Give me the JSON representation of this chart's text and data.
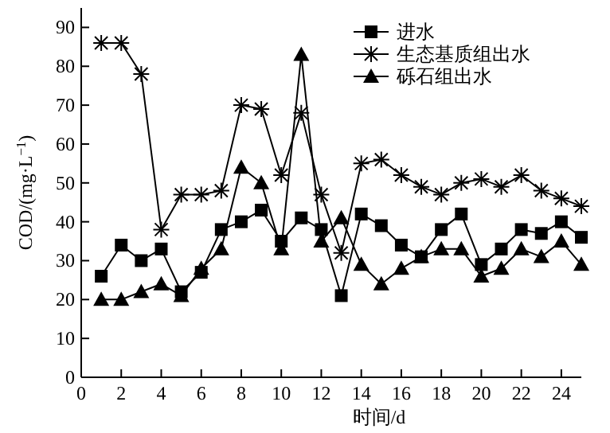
{
  "chart_data": {
    "type": "line",
    "xlabel": "时间/d",
    "ylabel": "COD/(mg·L$^{−1}$)",
    "x": [
      1,
      2,
      3,
      4,
      5,
      6,
      7,
      8,
      9,
      10,
      11,
      12,
      13,
      14,
      15,
      16,
      17,
      18,
      19,
      20,
      21,
      22,
      23,
      24,
      25
    ],
    "series": [
      {
        "name": "进水",
        "color": "#000000",
        "marker": "square",
        "values": [
          26,
          34,
          30,
          33,
          22,
          27,
          38,
          40,
          43,
          35,
          41,
          38,
          21,
          42,
          39,
          34,
          31,
          38,
          42,
          29,
          33,
          38,
          37,
          40,
          36
        ]
      },
      {
        "name": "生态基质组出水",
        "color": "#000000",
        "marker": "cross",
        "values": [
          86,
          86,
          78,
          38,
          47,
          47,
          48,
          70,
          69,
          52,
          68,
          47,
          32,
          55,
          56,
          52,
          49,
          47,
          50,
          51,
          49,
          52,
          48,
          46,
          44
        ]
      },
      {
        "name": "砾石组出水",
        "color": "#000000",
        "marker": "triangle",
        "values": [
          20,
          20,
          22,
          24,
          21,
          28,
          33,
          54,
          50,
          33,
          83,
          35,
          41,
          29,
          24,
          28,
          31,
          33,
          33,
          26,
          28,
          33,
          31,
          35,
          29
        ]
      }
    ],
    "xlim": [
      0,
      25
    ],
    "xticks": [
      0,
      2,
      4,
      6,
      8,
      10,
      12,
      14,
      16,
      18,
      20,
      22,
      24
    ],
    "ylim": [
      0,
      95
    ],
    "yticks": [
      0,
      10,
      20,
      30,
      40,
      50,
      60,
      70,
      80,
      90
    ],
    "legend": "top right",
    "grid": false
  }
}
